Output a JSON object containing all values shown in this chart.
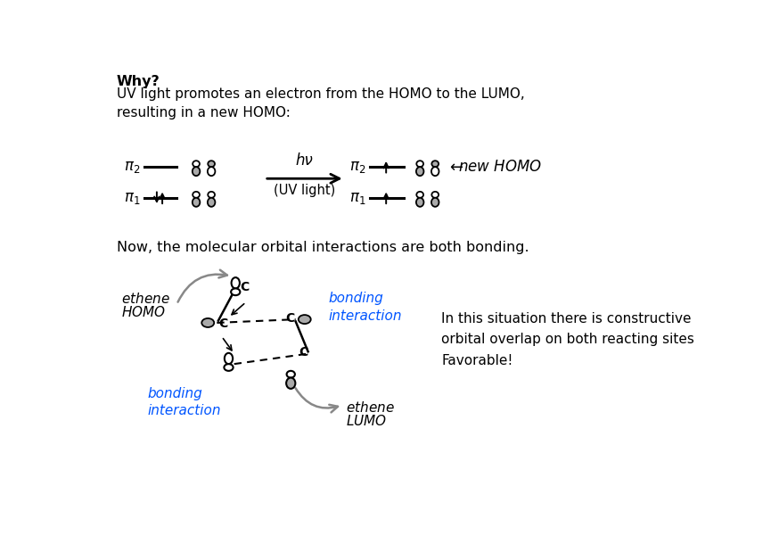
{
  "bg_color": "#ffffff",
  "title_bold": "Why?",
  "subtitle": "UV light promotes an electron from the HOMO to the LUMO,\nresulting in a new HOMO:",
  "middle_text": "Now, the molecular orbital interactions are both bonding.",
  "hv_label": "hν",
  "uv_label": "(UV light)",
  "bonding_interaction": "bonding\ninteraction",
  "constructive_text": "In this situation there is constructive\norbital overlap on both reacting sites",
  "favorable_text": "Favorable!",
  "blue_color": "#0055ff",
  "gray_orb": "#aaaaaa",
  "dark_gray": "#888888"
}
